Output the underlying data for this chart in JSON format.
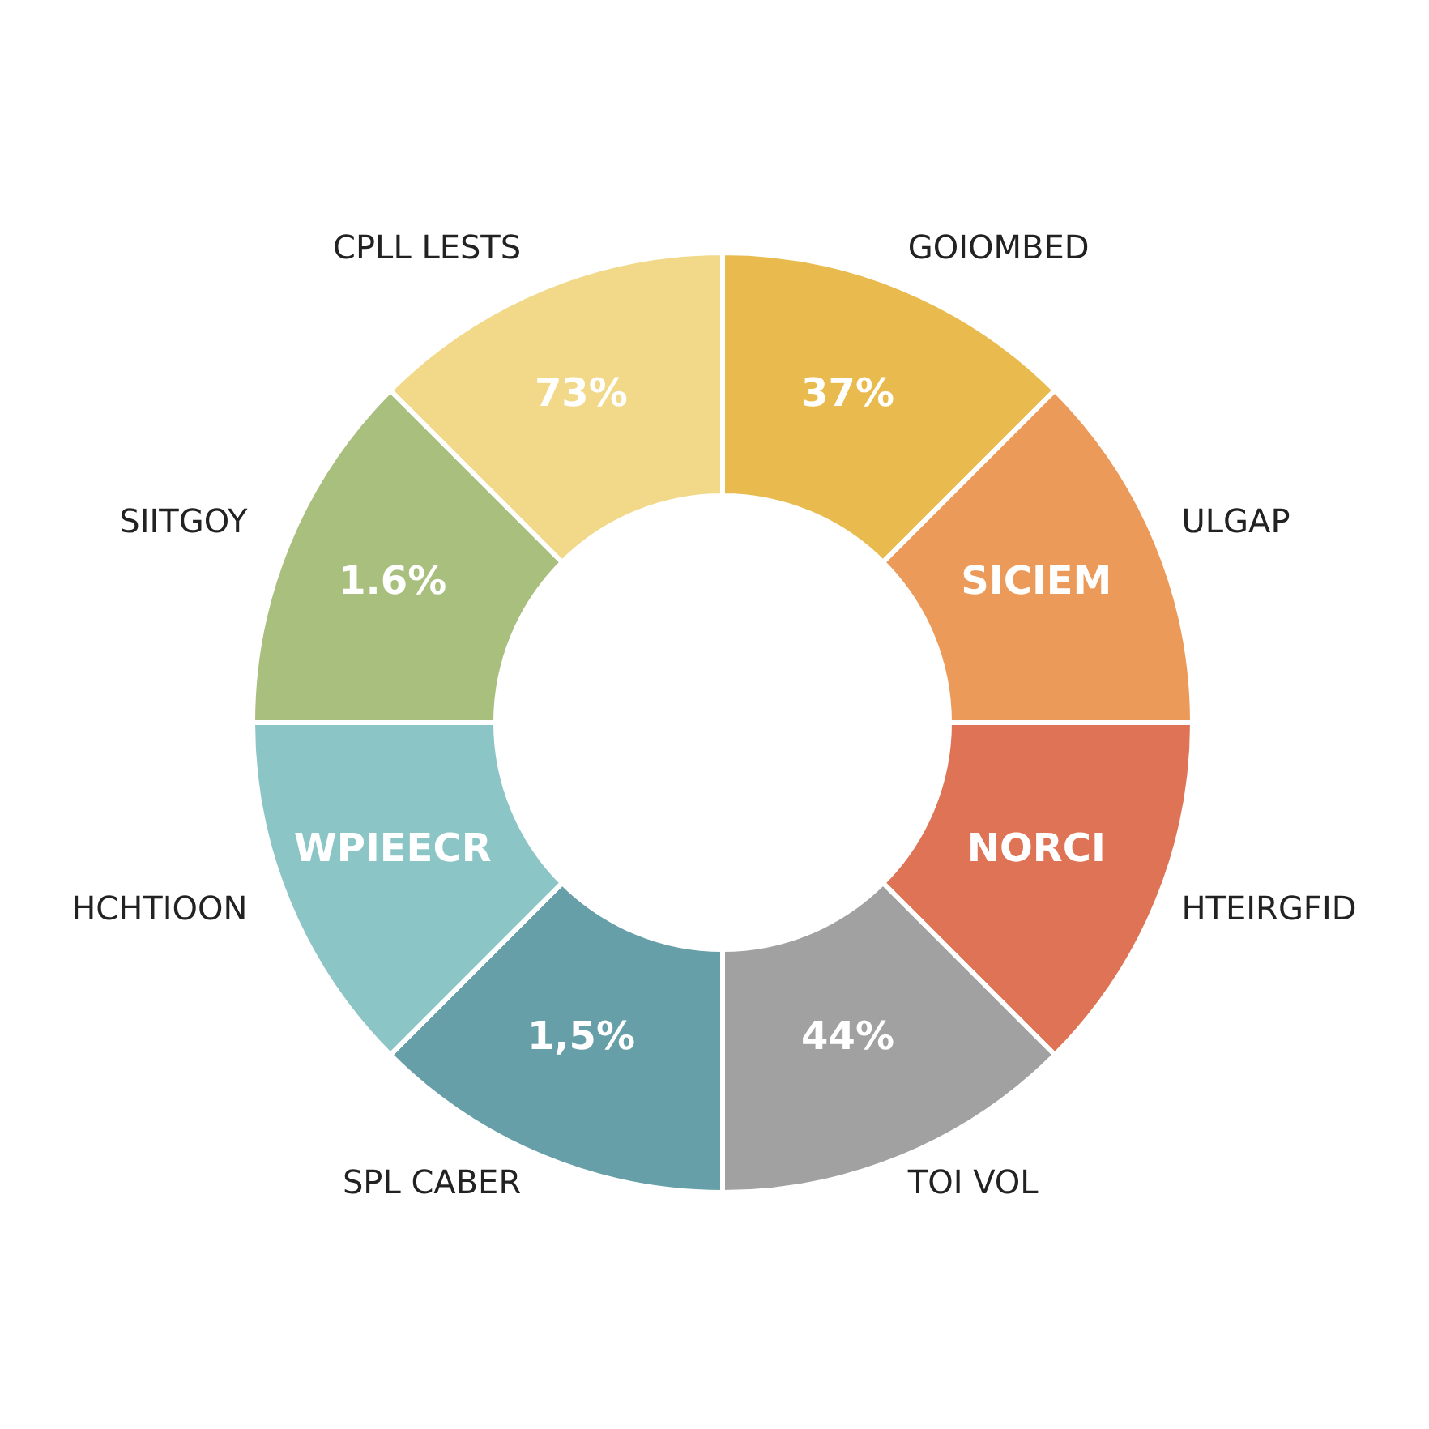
{
  "chart_data": {
    "type": "donut",
    "categories": [
      "GOIOMBED",
      "ULGAP",
      "HTEIRGFID",
      "TOI VOL",
      "SPL CABER",
      "HCHTIOON",
      "SIITGOY",
      "CPLL LESTS"
    ],
    "values": [
      12.5,
      12.5,
      12.5,
      12.5,
      12.5,
      12.5,
      12.5,
      12.5
    ],
    "annotations": [
      {
        "text": "37%",
        "x": "GOIOMBED"
      },
      {
        "text": "SICIEM",
        "x": "ULGAP"
      },
      {
        "text": "NORCI",
        "x": "HTEIRGFID"
      },
      {
        "text": "44%",
        "x": "TOI VOL"
      },
      {
        "text": "1,5%",
        "x": "SPL CABER"
      },
      {
        "text": "WPIEECR",
        "x": "HCHTIOON"
      },
      {
        "text": "1.6%",
        "x": "SIITGOY"
      },
      {
        "text": "73%",
        "x": "CPLL LESTS"
      }
    ],
    "colors": [
      "#e9bb4e",
      "#ec9a5a",
      "#df7356",
      "#a1a1a1",
      "#679fa8",
      "#8cc5c6",
      "#a9bf7e",
      "#f2d98a"
    ]
  }
}
